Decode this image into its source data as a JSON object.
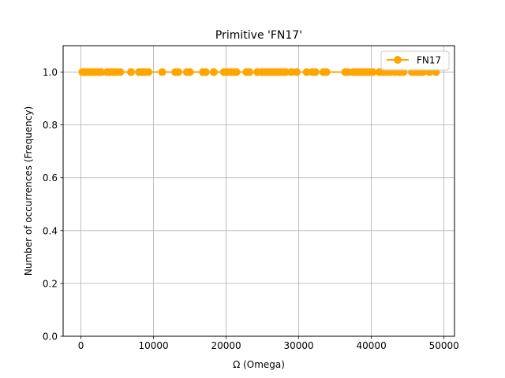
{
  "chart_data": {
    "type": "line",
    "title": "Primitive 'FN17'",
    "xlabel": "Ω (Omega)",
    "ylabel": "Number of occurrences (Frequency)",
    "xlim": [
      -2450,
      51450
    ],
    "ylim": [
      0,
      1.1
    ],
    "xticks": [
      0,
      10000,
      20000,
      30000,
      40000,
      50000
    ],
    "xtick_labels": [
      "0",
      "10000",
      "20000",
      "30000",
      "40000",
      "50000"
    ],
    "yticks": [
      0.0,
      0.2,
      0.4,
      0.6,
      0.8,
      1.0
    ],
    "ytick_labels": [
      "0.0",
      "0.2",
      "0.4",
      "0.6",
      "0.8",
      "1.0"
    ],
    "grid": true,
    "legend_position": "top-right",
    "series": [
      {
        "name": "FN17",
        "color": "#FFA500",
        "x": [
          200,
          500,
          800,
          1200,
          1600,
          2000,
          2400,
          2800,
          3600,
          4000,
          4400,
          4800,
          5400,
          6900,
          8000,
          8400,
          8800,
          9300,
          11200,
          13000,
          13400,
          14600,
          15000,
          16800,
          17200,
          18300,
          19700,
          20100,
          20600,
          21000,
          21400,
          22800,
          23200,
          24300,
          24900,
          25300,
          25700,
          26200,
          26600,
          27000,
          27400,
          27800,
          28200,
          29000,
          29700,
          31100,
          31900,
          32300,
          33400,
          33800,
          36400,
          36800,
          37500,
          37900,
          38400,
          38800,
          39300,
          39700,
          40200,
          41100,
          41600,
          42100,
          42600,
          43300,
          43900,
          44400,
          45600,
          46100,
          46600,
          47100,
          48000,
          48900
        ],
        "y": [
          1.0,
          1.0,
          1.0,
          1.0,
          1.0,
          1.0,
          1.0,
          1.0,
          1.0,
          1.0,
          1.0,
          1.0,
          1.0,
          1.0,
          1.0,
          1.0,
          1.0,
          1.0,
          1.0,
          1.0,
          1.0,
          1.0,
          1.0,
          1.0,
          1.0,
          1.0,
          1.0,
          1.0,
          1.0,
          1.0,
          1.0,
          1.0,
          1.0,
          1.0,
          1.0,
          1.0,
          1.0,
          1.0,
          1.0,
          1.0,
          1.0,
          1.0,
          1.0,
          1.0,
          1.0,
          1.0,
          1.0,
          1.0,
          1.0,
          1.0,
          1.0,
          1.0,
          1.0,
          1.0,
          1.0,
          1.0,
          1.0,
          1.0,
          1.0,
          1.0,
          1.0,
          1.0,
          1.0,
          1.0,
          1.0,
          1.0,
          1.0,
          1.0,
          1.0,
          1.0,
          1.0,
          1.0
        ]
      }
    ]
  }
}
